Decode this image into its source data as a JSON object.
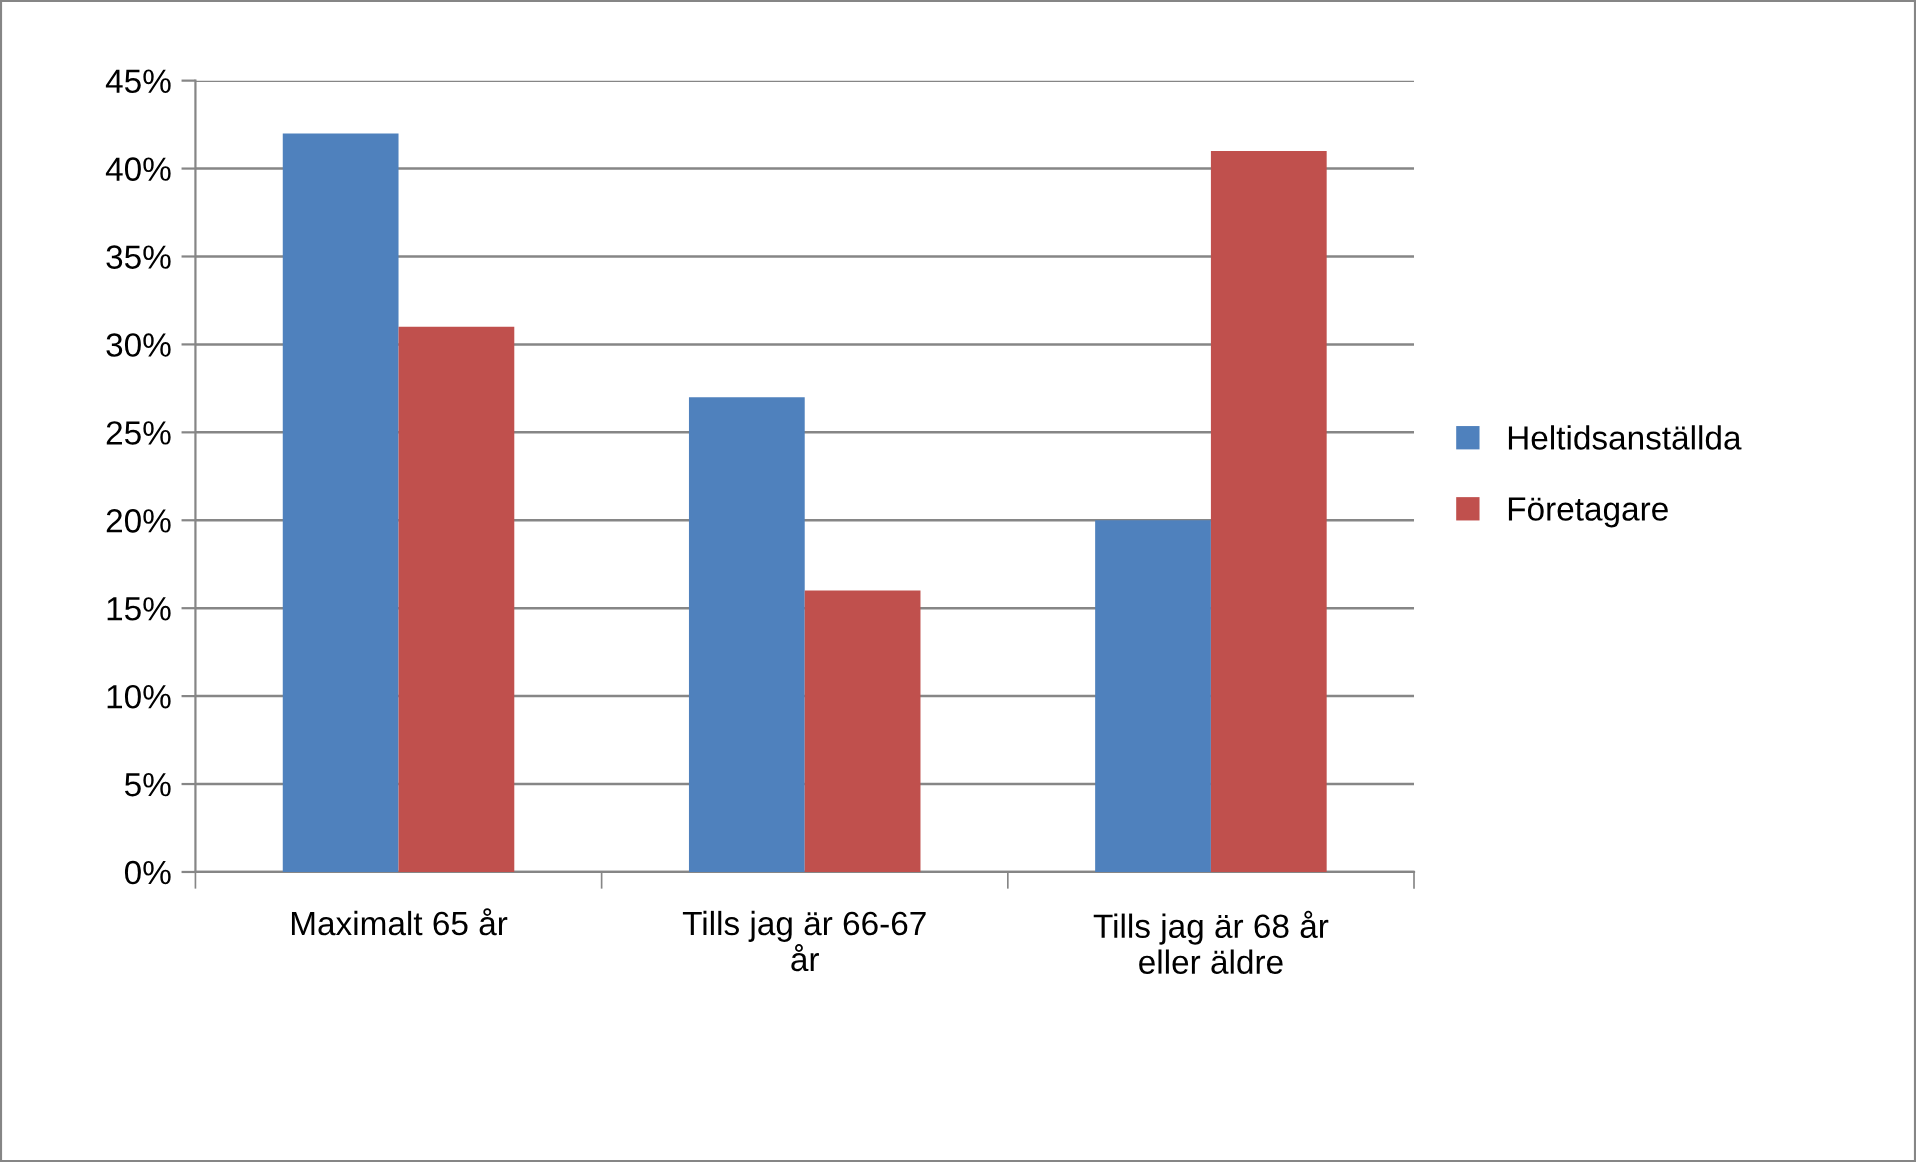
{
  "chart_data": {
    "type": "bar",
    "categories": [
      "Maximalt 65 år",
      "Tills jag är 66-67 år",
      "Tills jag är 68 år eller äldre"
    ],
    "series": [
      {
        "name": "Heltidsanställda",
        "color": "#4f81bd",
        "values": [
          42,
          27,
          20
        ]
      },
      {
        "name": "Företagare",
        "color": "#c0504d",
        "values": [
          31,
          16,
          41
        ]
      }
    ],
    "ylim": [
      0,
      45
    ],
    "yticks": [
      {
        "value": 0,
        "label": "0%"
      },
      {
        "value": 5,
        "label": "5%"
      },
      {
        "value": 10,
        "label": "10%"
      },
      {
        "value": 15,
        "label": "15%"
      },
      {
        "value": 20,
        "label": "20%"
      },
      {
        "value": 25,
        "label": "25%"
      },
      {
        "value": 30,
        "label": "30%"
      },
      {
        "value": 35,
        "label": "35%"
      },
      {
        "value": 40,
        "label": "40%"
      },
      {
        "value": 45,
        "label": "45%"
      }
    ],
    "grid": "y",
    "legend": "right"
  }
}
